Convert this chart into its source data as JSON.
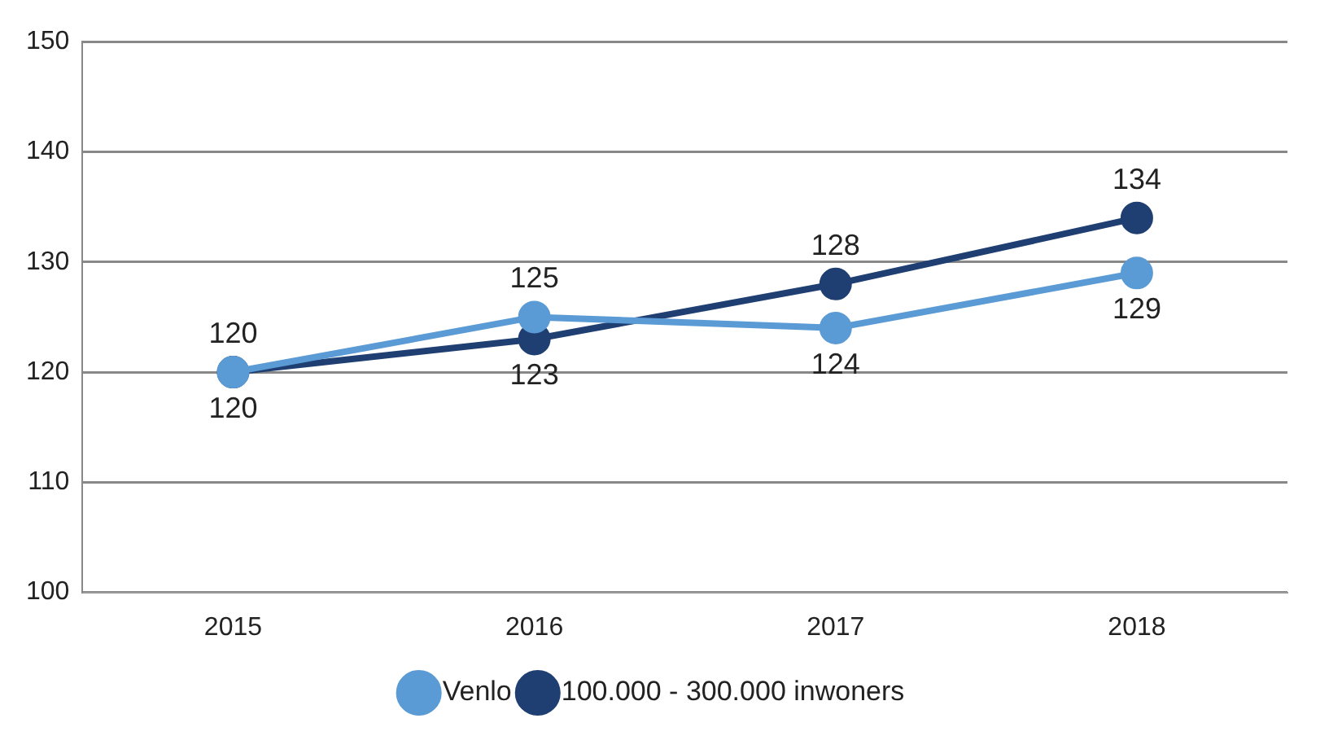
{
  "chart_data": {
    "type": "line",
    "categories": [
      "2015",
      "2016",
      "2017",
      "2018"
    ],
    "series": [
      {
        "name": "Venlo",
        "color": "#5b9bd5",
        "values": [
          120,
          125,
          124,
          129
        ]
      },
      {
        "name": "100.000 - 300.000 inwoners",
        "color": "#1f3f73",
        "values": [
          120,
          123,
          128,
          134
        ]
      }
    ],
    "data_labels": true,
    "ylim": [
      100,
      150
    ],
    "yticks": [
      100,
      110,
      120,
      130,
      140,
      150
    ],
    "grid": "y",
    "legend": "bottom",
    "marker": "circle",
    "line_style": "solid"
  }
}
